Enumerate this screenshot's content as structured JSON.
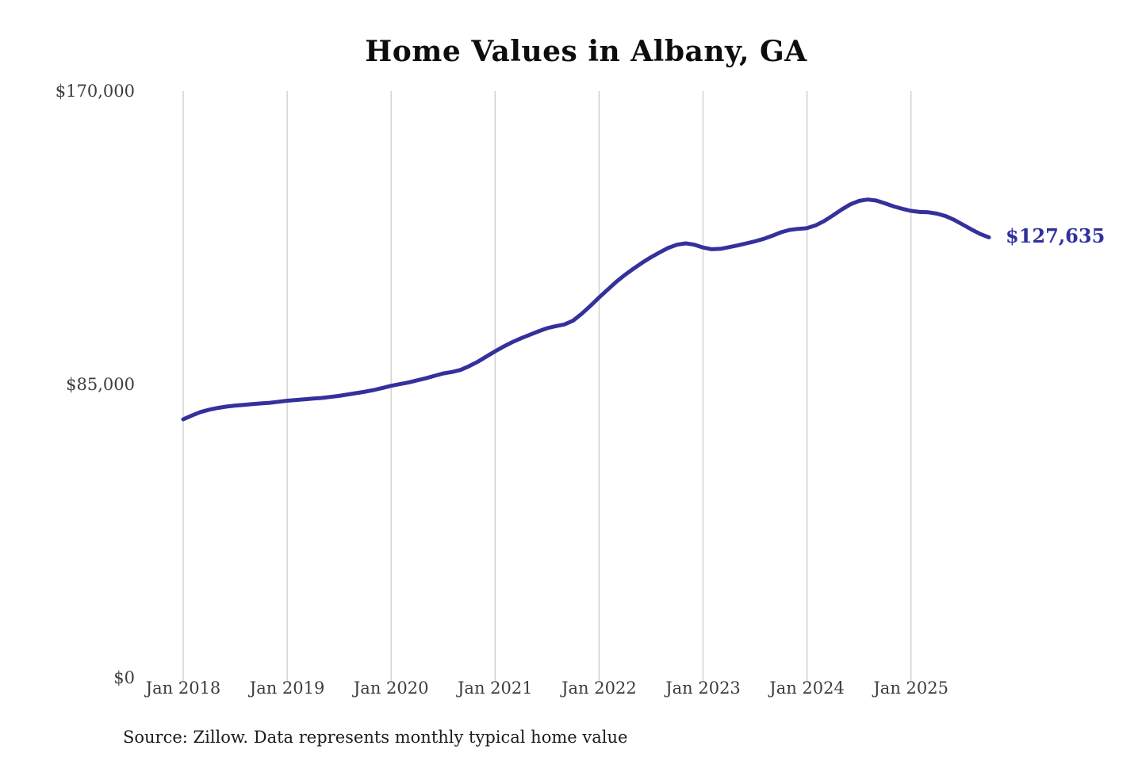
{
  "page": {
    "background": "#ffffff"
  },
  "chart_data": {
    "type": "line",
    "title": "Home Values in Albany, GA",
    "source_note": "Source: Zillow. Data represents monthly typical home value",
    "end_label": "$127,635",
    "final_value": 127635,
    "line_color": "#34319c",
    "end_label_color": "#312f9c",
    "grid_color": "#cccccc",
    "grid": "vertical-only",
    "legend_position": "none",
    "ylim": [
      0,
      170000
    ],
    "y_ticks": [
      {
        "value": 170000,
        "label": "$170,000"
      },
      {
        "value": 85000,
        "label": "$85,000"
      },
      {
        "value": 0,
        "label": "$0"
      }
    ],
    "x_ticks": [
      {
        "month_index": 0,
        "label": "Jan 2018"
      },
      {
        "month_index": 12,
        "label": "Jan 2019"
      },
      {
        "month_index": 24,
        "label": "Jan 2020"
      },
      {
        "month_index": 36,
        "label": "Jan 2021"
      },
      {
        "month_index": 48,
        "label": "Jan 2022"
      },
      {
        "month_index": 60,
        "label": "Jan 2023"
      },
      {
        "month_index": 72,
        "label": "Jan 2024"
      },
      {
        "month_index": 84,
        "label": "Jan 2025"
      }
    ],
    "series": [
      {
        "name": "Monthly typical home value",
        "frequency": "monthly",
        "months": [
          "2018-01",
          "2018-02",
          "2018-03",
          "2018-04",
          "2018-05",
          "2018-06",
          "2018-07",
          "2018-08",
          "2018-09",
          "2018-10",
          "2018-11",
          "2018-12",
          "2019-01",
          "2019-02",
          "2019-03",
          "2019-04",
          "2019-05",
          "2019-06",
          "2019-07",
          "2019-08",
          "2019-09",
          "2019-10",
          "2019-11",
          "2019-12",
          "2020-01",
          "2020-02",
          "2020-03",
          "2020-04",
          "2020-05",
          "2020-06",
          "2020-07",
          "2020-08",
          "2020-09",
          "2020-10",
          "2020-11",
          "2020-12",
          "2021-01",
          "2021-02",
          "2021-03",
          "2021-04",
          "2021-05",
          "2021-06",
          "2021-07",
          "2021-08",
          "2021-09",
          "2021-10",
          "2021-11",
          "2021-12",
          "2022-01",
          "2022-02",
          "2022-03",
          "2022-04",
          "2022-05",
          "2022-06",
          "2022-07",
          "2022-08",
          "2022-09",
          "2022-10",
          "2022-11",
          "2022-12",
          "2023-01",
          "2023-02",
          "2023-03",
          "2023-04",
          "2023-05",
          "2023-06",
          "2023-07",
          "2023-08",
          "2023-09",
          "2023-10",
          "2023-11",
          "2023-12",
          "2024-01",
          "2024-02",
          "2024-03",
          "2024-04",
          "2024-05",
          "2024-06",
          "2024-07",
          "2024-08",
          "2024-09",
          "2024-10",
          "2024-11",
          "2024-12",
          "2025-01",
          "2025-02",
          "2025-03",
          "2025-04",
          "2025-05",
          "2025-06",
          "2025-07",
          "2025-08",
          "2025-09",
          "2025-10"
        ],
        "values": [
          74900,
          76000,
          77000,
          77700,
          78200,
          78600,
          78900,
          79100,
          79300,
          79500,
          79700,
          80000,
          80300,
          80500,
          80700,
          80900,
          81100,
          81400,
          81700,
          82100,
          82500,
          82900,
          83400,
          84000,
          84600,
          85100,
          85600,
          86200,
          86800,
          87500,
          88200,
          88600,
          89200,
          90300,
          91600,
          93100,
          94600,
          96000,
          97300,
          98400,
          99400,
          100400,
          101300,
          101900,
          102400,
          103500,
          105500,
          107800,
          110200,
          112500,
          114800,
          116800,
          118600,
          120300,
          121900,
          123300,
          124600,
          125500,
          125900,
          125500,
          124700,
          124200,
          124300,
          124800,
          125300,
          125900,
          126500,
          127200,
          128100,
          129100,
          129800,
          130100,
          130300,
          131100,
          132400,
          134000,
          135700,
          137200,
          138200,
          138600,
          138300,
          137500,
          136600,
          135900,
          135300,
          135000,
          134900,
          134500,
          133800,
          132700,
          131300,
          129900,
          128600,
          127635
        ]
      }
    ]
  }
}
